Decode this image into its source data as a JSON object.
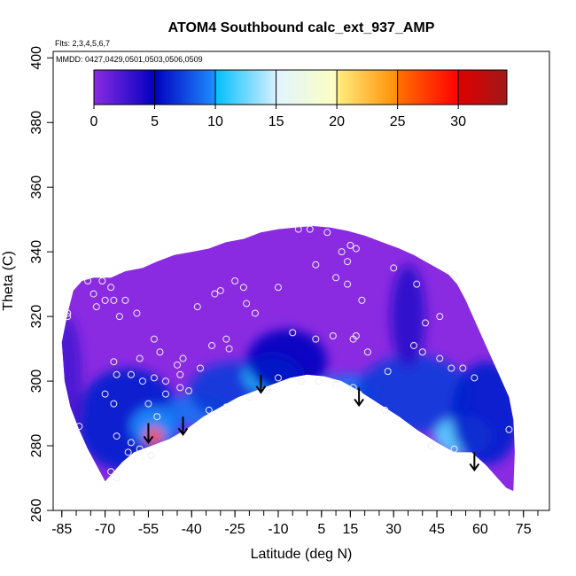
{
  "chart_data": {
    "type": "heatmap",
    "title": "ATOM4 Southbound calc_ext_937_AMP",
    "annotations": [
      "Flts: 2,3,4,5,6,7",
      "MMDD: 0427,0429,0501,0503,0506,0509"
    ],
    "xlabel": "Latitude (deg N)",
    "ylabel": "Theta (C)",
    "xlim": [
      -88,
      84
    ],
    "ylim": [
      260,
      402
    ],
    "xticks": [
      -85,
      -70,
      -55,
      -40,
      -25,
      -10,
      5,
      15,
      30,
      45,
      60,
      75
    ],
    "xminor": [
      -85,
      -80,
      -75,
      -70,
      -65,
      -60,
      -55,
      -50,
      -45,
      -40,
      -35,
      -30,
      -25,
      -20,
      -15,
      -10,
      -5,
      0,
      5,
      10,
      15,
      20,
      25,
      30,
      35,
      40,
      45,
      50,
      55,
      60,
      65,
      70,
      75,
      80
    ],
    "yticks": [
      260,
      280,
      300,
      320,
      340,
      360,
      380,
      400
    ],
    "colorbar": {
      "min": 0,
      "max": 34,
      "ticks": [
        0,
        5,
        10,
        15,
        20,
        25,
        30
      ],
      "segments": [
        {
          "from": 0,
          "to": 5,
          "colors": [
            "#8a2be2",
            "#0000c0"
          ]
        },
        {
          "from": 5,
          "to": 10,
          "colors": [
            "#0000c0",
            "#1e90ff"
          ]
        },
        {
          "from": 10,
          "to": 15,
          "colors": [
            "#00bfff",
            "#d8f0ff"
          ]
        },
        {
          "from": 15,
          "to": 20,
          "colors": [
            "#e0f4ff",
            "#ffffc0"
          ]
        },
        {
          "from": 20,
          "to": 25,
          "colors": [
            "#ffef80",
            "#ff8c00"
          ]
        },
        {
          "from": 25,
          "to": 30,
          "colors": [
            "#ff7000",
            "#ff0000"
          ]
        },
        {
          "from": 30,
          "to": 34,
          "colors": [
            "#e00000",
            "#a01818"
          ]
        }
      ]
    },
    "field_color": "#8a2be2",
    "hotspot": {
      "lat": -53,
      "theta": 283,
      "value": 26
    },
    "boundary": [
      [
        -83,
        321
      ],
      [
        -81,
        328
      ],
      [
        -78,
        331
      ],
      [
        -74,
        332
      ],
      [
        -68,
        332
      ],
      [
        -63,
        334
      ],
      [
        -57,
        335
      ],
      [
        -52,
        337
      ],
      [
        -46,
        339
      ],
      [
        -40,
        340
      ],
      [
        -34,
        341
      ],
      [
        -28,
        343
      ],
      [
        -22,
        344
      ],
      [
        -16,
        346
      ],
      [
        -10,
        347
      ],
      [
        -4,
        347.5
      ],
      [
        2,
        348
      ],
      [
        8,
        347.5
      ],
      [
        14,
        346.5
      ],
      [
        20,
        345
      ],
      [
        26,
        343
      ],
      [
        32,
        341
      ],
      [
        37,
        339
      ],
      [
        41,
        337
      ],
      [
        45,
        335
      ],
      [
        49,
        333
      ],
      [
        52,
        330
      ],
      [
        55,
        325
      ],
      [
        58,
        319
      ],
      [
        61,
        313
      ],
      [
        64,
        307
      ],
      [
        67,
        301
      ],
      [
        70,
        295
      ],
      [
        71.5,
        288
      ],
      [
        72,
        278
      ],
      [
        71.5,
        266
      ],
      [
        69,
        267
      ],
      [
        66,
        270
      ],
      [
        62,
        274
      ],
      [
        57,
        278
      ],
      [
        51,
        278
      ],
      [
        45,
        281
      ],
      [
        38,
        285
      ],
      [
        32,
        289
      ],
      [
        25,
        293
      ],
      [
        18,
        297
      ],
      [
        12,
        300
      ],
      [
        6,
        301.5
      ],
      [
        0,
        302
      ],
      [
        -6,
        301
      ],
      [
        -12,
        299
      ],
      [
        -18,
        297
      ],
      [
        -24,
        295
      ],
      [
        -30,
        292
      ],
      [
        -36,
        289
      ],
      [
        -42,
        285
      ],
      [
        -48,
        282
      ],
      [
        -54,
        280
      ],
      [
        -60,
        278
      ],
      [
        -64,
        275
      ],
      [
        -68,
        271
      ],
      [
        -70,
        269
      ],
      [
        -73,
        274
      ],
      [
        -76,
        279
      ],
      [
        -79,
        285
      ],
      [
        -82,
        292
      ],
      [
        -84,
        300
      ],
      [
        -85,
        312
      ]
    ],
    "blobs": [
      {
        "lat": -62,
        "theta": 288,
        "value": 6,
        "rx": 18,
        "ry": 16
      },
      {
        "lat": -53,
        "theta": 286,
        "value": 10,
        "rx": 8,
        "ry": 6
      },
      {
        "lat": -38,
        "theta": 291,
        "value": 9,
        "rx": 11,
        "ry": 5
      },
      {
        "lat": -25,
        "theta": 297,
        "value": 7,
        "rx": 16,
        "ry": 9
      },
      {
        "lat": -12,
        "theta": 302,
        "value": 11,
        "rx": 10,
        "ry": 6
      },
      {
        "lat": -7,
        "theta": 306,
        "value": 5,
        "rx": 14,
        "ry": 10
      },
      {
        "lat": 14,
        "theta": 297,
        "value": 9,
        "rx": 10,
        "ry": 5
      },
      {
        "lat": 37,
        "theta": 296,
        "value": 7,
        "rx": 20,
        "ry": 12
      },
      {
        "lat": 54,
        "theta": 283,
        "value": 12,
        "rx": 10,
        "ry": 6
      },
      {
        "lat": 62,
        "theta": 290,
        "value": 6,
        "rx": 12,
        "ry": 16
      },
      {
        "lat": 35,
        "theta": 320,
        "value": 3.5,
        "rx": 6,
        "ry": 16
      },
      {
        "lat": -83,
        "theta": 300,
        "value": 2.5,
        "rx": 5,
        "ry": 20
      }
    ],
    "points": [
      [
        -83,
        321
      ],
      [
        -76,
        331
      ],
      [
        -74,
        327
      ],
      [
        -73,
        323
      ],
      [
        -70,
        325
      ],
      [
        -67,
        325
      ],
      [
        -65,
        320
      ],
      [
        -63,
        325
      ],
      [
        -71,
        331
      ],
      [
        -68,
        329
      ],
      [
        -55,
        337
      ],
      [
        -38,
        323
      ],
      [
        -32,
        327
      ],
      [
        -30,
        328
      ],
      [
        -25,
        331
      ],
      [
        -22,
        329
      ],
      [
        -21,
        324
      ],
      [
        -18,
        321
      ],
      [
        -10,
        329
      ],
      [
        -3,
        347
      ],
      [
        1,
        347
      ],
      [
        7,
        346
      ],
      [
        12,
        340
      ],
      [
        15,
        342
      ],
      [
        17,
        341
      ],
      [
        14,
        337
      ],
      [
        3,
        336
      ],
      [
        10,
        332
      ],
      [
        14,
        330
      ],
      [
        19,
        325
      ],
      [
        30,
        335
      ],
      [
        38,
        330
      ],
      [
        51,
        333
      ],
      [
        41,
        318
      ],
      [
        46,
        320
      ],
      [
        -53,
        313
      ],
      [
        -51,
        309
      ],
      [
        -58,
        307
      ],
      [
        -45,
        305
      ],
      [
        -37,
        304
      ],
      [
        -43,
        307
      ],
      [
        -33,
        311
      ],
      [
        -28,
        313
      ],
      [
        -27,
        310
      ],
      [
        -5,
        315
      ],
      [
        3,
        313
      ],
      [
        9,
        314
      ],
      [
        16,
        313
      ],
      [
        17,
        314
      ],
      [
        21,
        309
      ],
      [
        28,
        303
      ],
      [
        37,
        311
      ],
      [
        40,
        309
      ],
      [
        46,
        307
      ],
      [
        50,
        304
      ],
      [
        54,
        304
      ],
      [
        58,
        301
      ],
      [
        -67,
        306
      ],
      [
        -66,
        302
      ],
      [
        -61,
        302
      ],
      [
        -57,
        300
      ],
      [
        -53,
        301
      ],
      [
        -49,
        300
      ],
      [
        -44,
        302
      ],
      [
        -70,
        296
      ],
      [
        -67,
        293
      ],
      [
        -55,
        293
      ],
      [
        -52,
        289
      ],
      [
        -34,
        291
      ],
      [
        -28,
        292
      ],
      [
        -20,
        295
      ],
      [
        -14,
        297
      ],
      [
        -10,
        301
      ],
      [
        -2,
        300
      ],
      [
        4,
        300
      ],
      [
        10,
        299
      ],
      [
        16,
        298
      ],
      [
        18,
        296
      ],
      [
        27,
        291
      ],
      [
        43,
        280
      ],
      [
        51,
        279
      ],
      [
        -66,
        283
      ],
      [
        -61,
        281
      ],
      [
        -62,
        278
      ],
      [
        -58,
        279
      ],
      [
        -54,
        277
      ],
      [
        -79,
        286
      ],
      [
        -68,
        272
      ],
      [
        -66,
        270
      ],
      [
        70,
        285
      ],
      [
        -83,
        320
      ],
      [
        -59,
        321
      ],
      [
        -44,
        298
      ],
      [
        -49,
        296
      ],
      [
        -41,
        297
      ]
    ],
    "arrows": [
      {
        "lat": -55,
        "theta": 287,
        "tip": 281
      },
      {
        "lat": -43,
        "theta": 289,
        "tip": 283.5
      },
      {
        "lat": -16,
        "theta": 302,
        "tip": 296.5
      },
      {
        "lat": 18,
        "theta": 298,
        "tip": 292.5
      },
      {
        "lat": 58,
        "theta": 278,
        "tip": 272.5
      }
    ]
  }
}
